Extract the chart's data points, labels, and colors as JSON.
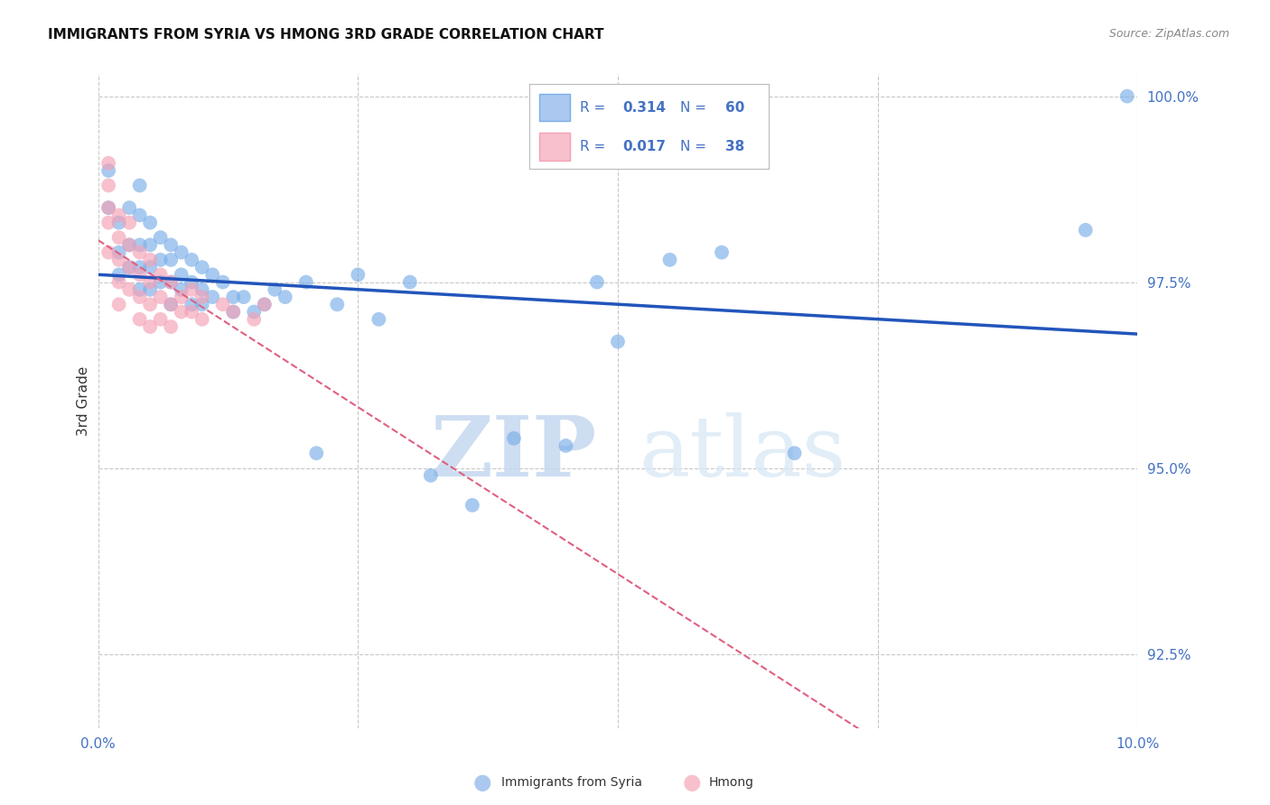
{
  "title": "IMMIGRANTS FROM SYRIA VS HMONG 3RD GRADE CORRELATION CHART",
  "source": "Source: ZipAtlas.com",
  "ylabel": "3rd Grade",
  "xlim": [
    0.0,
    0.1
  ],
  "ylim": [
    0.915,
    1.003
  ],
  "yticks": [
    0.925,
    0.95,
    0.975,
    1.0
  ],
  "ytick_labels": [
    "92.5%",
    "95.0%",
    "97.5%",
    "100.0%"
  ],
  "xticks": [
    0.0,
    0.025,
    0.05,
    0.075,
    0.1
  ],
  "xtick_labels": [
    "0.0%",
    "",
    "",
    "",
    "10.0%"
  ],
  "background_color": "#ffffff",
  "grid_color": "#c8c8c8",
  "watermark_zip": "ZIP",
  "watermark_atlas": "atlas",
  "blue_color": "#7aaee8",
  "pink_color": "#f4a0b5",
  "blue_line_color": "#2255bb",
  "pink_line_color": "#e06080",
  "tick_color": "#4472C4",
  "blue_series": {
    "name": "Immigrants from Syria",
    "R": 0.314,
    "N": 60,
    "x": [
      0.001,
      0.001,
      0.002,
      0.002,
      0.002,
      0.003,
      0.003,
      0.003,
      0.004,
      0.004,
      0.004,
      0.004,
      0.004,
      0.005,
      0.005,
      0.005,
      0.005,
      0.006,
      0.006,
      0.006,
      0.007,
      0.007,
      0.007,
      0.007,
      0.008,
      0.008,
      0.008,
      0.009,
      0.009,
      0.009,
      0.01,
      0.01,
      0.01,
      0.011,
      0.011,
      0.012,
      0.013,
      0.013,
      0.014,
      0.015,
      0.016,
      0.017,
      0.018,
      0.02,
      0.021,
      0.023,
      0.025,
      0.027,
      0.03,
      0.032,
      0.036,
      0.04,
      0.045,
      0.048,
      0.05,
      0.055,
      0.06,
      0.067,
      0.095,
      0.099
    ],
    "y": [
      0.985,
      0.99,
      0.983,
      0.979,
      0.976,
      0.985,
      0.98,
      0.977,
      0.988,
      0.984,
      0.98,
      0.977,
      0.974,
      0.983,
      0.98,
      0.977,
      0.974,
      0.981,
      0.978,
      0.975,
      0.98,
      0.978,
      0.975,
      0.972,
      0.979,
      0.976,
      0.974,
      0.978,
      0.975,
      0.972,
      0.977,
      0.974,
      0.972,
      0.976,
      0.973,
      0.975,
      0.973,
      0.971,
      0.973,
      0.971,
      0.972,
      0.974,
      0.973,
      0.975,
      0.952,
      0.972,
      0.976,
      0.97,
      0.975,
      0.949,
      0.945,
      0.954,
      0.953,
      0.975,
      0.967,
      0.978,
      0.979,
      0.952,
      0.982,
      1.0
    ]
  },
  "pink_series": {
    "name": "Hmong",
    "R": 0.017,
    "N": 38,
    "x": [
      0.001,
      0.001,
      0.001,
      0.001,
      0.001,
      0.002,
      0.002,
      0.002,
      0.002,
      0.002,
      0.003,
      0.003,
      0.003,
      0.003,
      0.004,
      0.004,
      0.004,
      0.004,
      0.005,
      0.005,
      0.005,
      0.005,
      0.006,
      0.006,
      0.006,
      0.007,
      0.007,
      0.007,
      0.008,
      0.008,
      0.009,
      0.009,
      0.01,
      0.01,
      0.012,
      0.013,
      0.015,
      0.016
    ],
    "y": [
      0.991,
      0.988,
      0.985,
      0.983,
      0.979,
      0.984,
      0.981,
      0.978,
      0.975,
      0.972,
      0.983,
      0.98,
      0.977,
      0.974,
      0.979,
      0.976,
      0.973,
      0.97,
      0.978,
      0.975,
      0.972,
      0.969,
      0.976,
      0.973,
      0.97,
      0.975,
      0.972,
      0.969,
      0.973,
      0.971,
      0.974,
      0.971,
      0.973,
      0.97,
      0.972,
      0.971,
      0.97,
      0.972
    ]
  }
}
